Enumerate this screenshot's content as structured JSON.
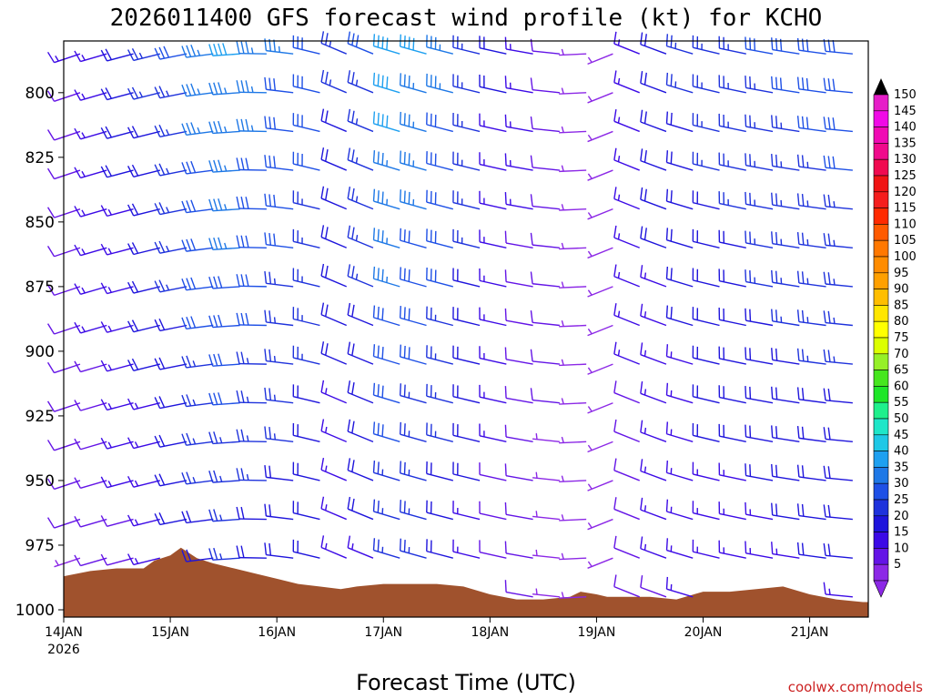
{
  "chart_data": {
    "type": "wind-barb-profile",
    "title": "2026011400 GFS forecast wind profile (kt) for KCHO",
    "xlabel": "Forecast Time (UTC)",
    "credit": "coolwx.com/models",
    "x_range_days": [
      0,
      7.55
    ],
    "x_ticks": [
      {
        "label": "14JAN",
        "sublabel": "2026",
        "day": 0
      },
      {
        "label": "15JAN",
        "day": 1
      },
      {
        "label": "16JAN",
        "day": 2
      },
      {
        "label": "17JAN",
        "day": 3
      },
      {
        "label": "18JAN",
        "day": 4
      },
      {
        "label": "19JAN",
        "day": 5
      },
      {
        "label": "20JAN",
        "day": 6
      },
      {
        "label": "21JAN",
        "day": 7
      }
    ],
    "y_ticks": [
      "800",
      "825",
      "850",
      "875",
      "900",
      "925",
      "950",
      "975",
      "1000"
    ],
    "pressure_range_hpa": [
      780,
      1000
    ],
    "barb_levels_hpa": [
      785,
      800,
      815,
      830,
      845,
      860,
      875,
      890,
      905,
      920,
      935,
      950,
      965,
      980,
      995
    ],
    "time_step_hours": 6,
    "colorbar": {
      "labels": [
        "150",
        "145",
        "140",
        "135",
        "130",
        "125",
        "120",
        "115",
        "110",
        "105",
        "100",
        "95",
        "90",
        "85",
        "80",
        "75",
        "70",
        "65",
        "60",
        "55",
        "50",
        "45",
        "40",
        "35",
        "30",
        "25",
        "20",
        "15",
        "10",
        "5"
      ],
      "colors": [
        "#e61ec8",
        "#f00ae6",
        "#f00ab4",
        "#f00a8c",
        "#f00a50",
        "#f01414",
        "#f51e1e",
        "#ff2a00",
        "#ff5a00",
        "#ff7800",
        "#ff8c00",
        "#ffa000",
        "#ffbe00",
        "#ffe600",
        "#ffff00",
        "#dcff00",
        "#96f028",
        "#46e61e",
        "#1ee628",
        "#1ef08c",
        "#1ee6c8",
        "#1ec8e6",
        "#1ea0f0",
        "#1e78e6",
        "#1e50e6",
        "#1e32dc",
        "#1e14dc",
        "#3c0ae6",
        "#6414e6",
        "#8c28e6"
      ]
    },
    "terrain": {
      "fill_color": "#a0522d",
      "days": [
        0,
        0.25,
        0.5,
        0.75,
        0.85,
        1.0,
        1.1,
        1.25,
        1.4,
        1.6,
        1.8,
        2.0,
        2.2,
        2.4,
        2.6,
        2.75,
        3.0,
        3.25,
        3.5,
        3.75,
        4.0,
        4.25,
        4.5,
        4.75,
        4.85,
        5.0,
        5.1,
        5.25,
        5.5,
        5.75,
        6.0,
        6.25,
        6.5,
        6.75,
        7.0,
        7.25,
        7.5
      ],
      "pressure": [
        987,
        985,
        984,
        984,
        981,
        979,
        976,
        980,
        982,
        984,
        986,
        988,
        990,
        991,
        992,
        991,
        990,
        990,
        990,
        991,
        994,
        996,
        996,
        995,
        993,
        994,
        995,
        995,
        995,
        996,
        993,
        993,
        992,
        991,
        994,
        996,
        997
      ]
    },
    "wind_components_kt": {
      "u_day_kt": [
        [
          0,
          12
        ],
        [
          0.9,
          25
        ],
        [
          1.4,
          40
        ],
        [
          2.3,
          30
        ],
        [
          2.6,
          18
        ],
        [
          3.0,
          40
        ],
        [
          3.6,
          32
        ],
        [
          4.0,
          18
        ],
        [
          4.7,
          8
        ],
        [
          5.0,
          5
        ],
        [
          5.3,
          18
        ],
        [
          6.0,
          25
        ],
        [
          7.0,
          30
        ],
        [
          7.5,
          32
        ]
      ],
      "v_day_kt": [
        [
          0,
          4
        ],
        [
          0.9,
          6
        ],
        [
          1.4,
          4
        ],
        [
          2.3,
          -8
        ],
        [
          2.6,
          -10
        ],
        [
          3.0,
          -12
        ],
        [
          3.6,
          -8
        ],
        [
          4.0,
          -4
        ],
        [
          4.7,
          0
        ],
        [
          5.0,
          2
        ],
        [
          5.3,
          -8
        ],
        [
          6.0,
          -6
        ],
        [
          7.0,
          -4
        ],
        [
          7.5,
          -2
        ]
      ],
      "speed_factor_surface_to_top": [
        0.55,
        1.0
      ]
    }
  }
}
